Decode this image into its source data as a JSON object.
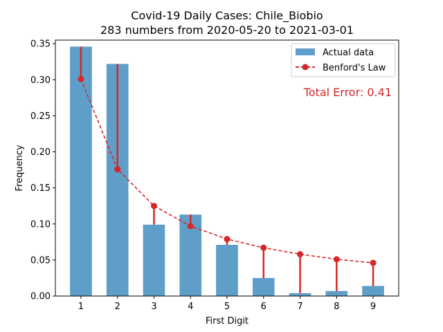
{
  "chart_data": {
    "type": "bar",
    "title": "Covid-19 Daily Cases: Chile_Biobio",
    "subtitle": "283 numbers from 2020-05-20 to 2021-03-01",
    "xlabel": "First Digit",
    "ylabel": "Frequency",
    "categories": [
      "1",
      "2",
      "3",
      "4",
      "5",
      "6",
      "7",
      "8",
      "9"
    ],
    "series": [
      {
        "name": "Actual data",
        "type": "bar",
        "color": "#5f9ec8",
        "values": [
          0.346,
          0.322,
          0.099,
          0.113,
          0.071,
          0.025,
          0.004,
          0.007,
          0.014
        ]
      },
      {
        "name": "Benford's Law",
        "type": "line",
        "style": "dashed",
        "marker": "circle",
        "color": "#d62728",
        "values": [
          0.301,
          0.176,
          0.125,
          0.097,
          0.079,
          0.067,
          0.058,
          0.051,
          0.046
        ]
      }
    ],
    "ylim": [
      0,
      0.355
    ],
    "yticks": [
      "0.00",
      "0.05",
      "0.10",
      "0.15",
      "0.20",
      "0.25",
      "0.30",
      "0.35"
    ],
    "ytick_values": [
      0,
      0.05,
      0.1,
      0.15,
      0.2,
      0.25,
      0.3,
      0.35
    ],
    "xlim": [
      0.3,
      9.7
    ],
    "grid": false,
    "legend_position": "top-right",
    "annotation": {
      "text": "Total Error: 0.41",
      "color": "#d62728",
      "position": "top-right"
    }
  }
}
